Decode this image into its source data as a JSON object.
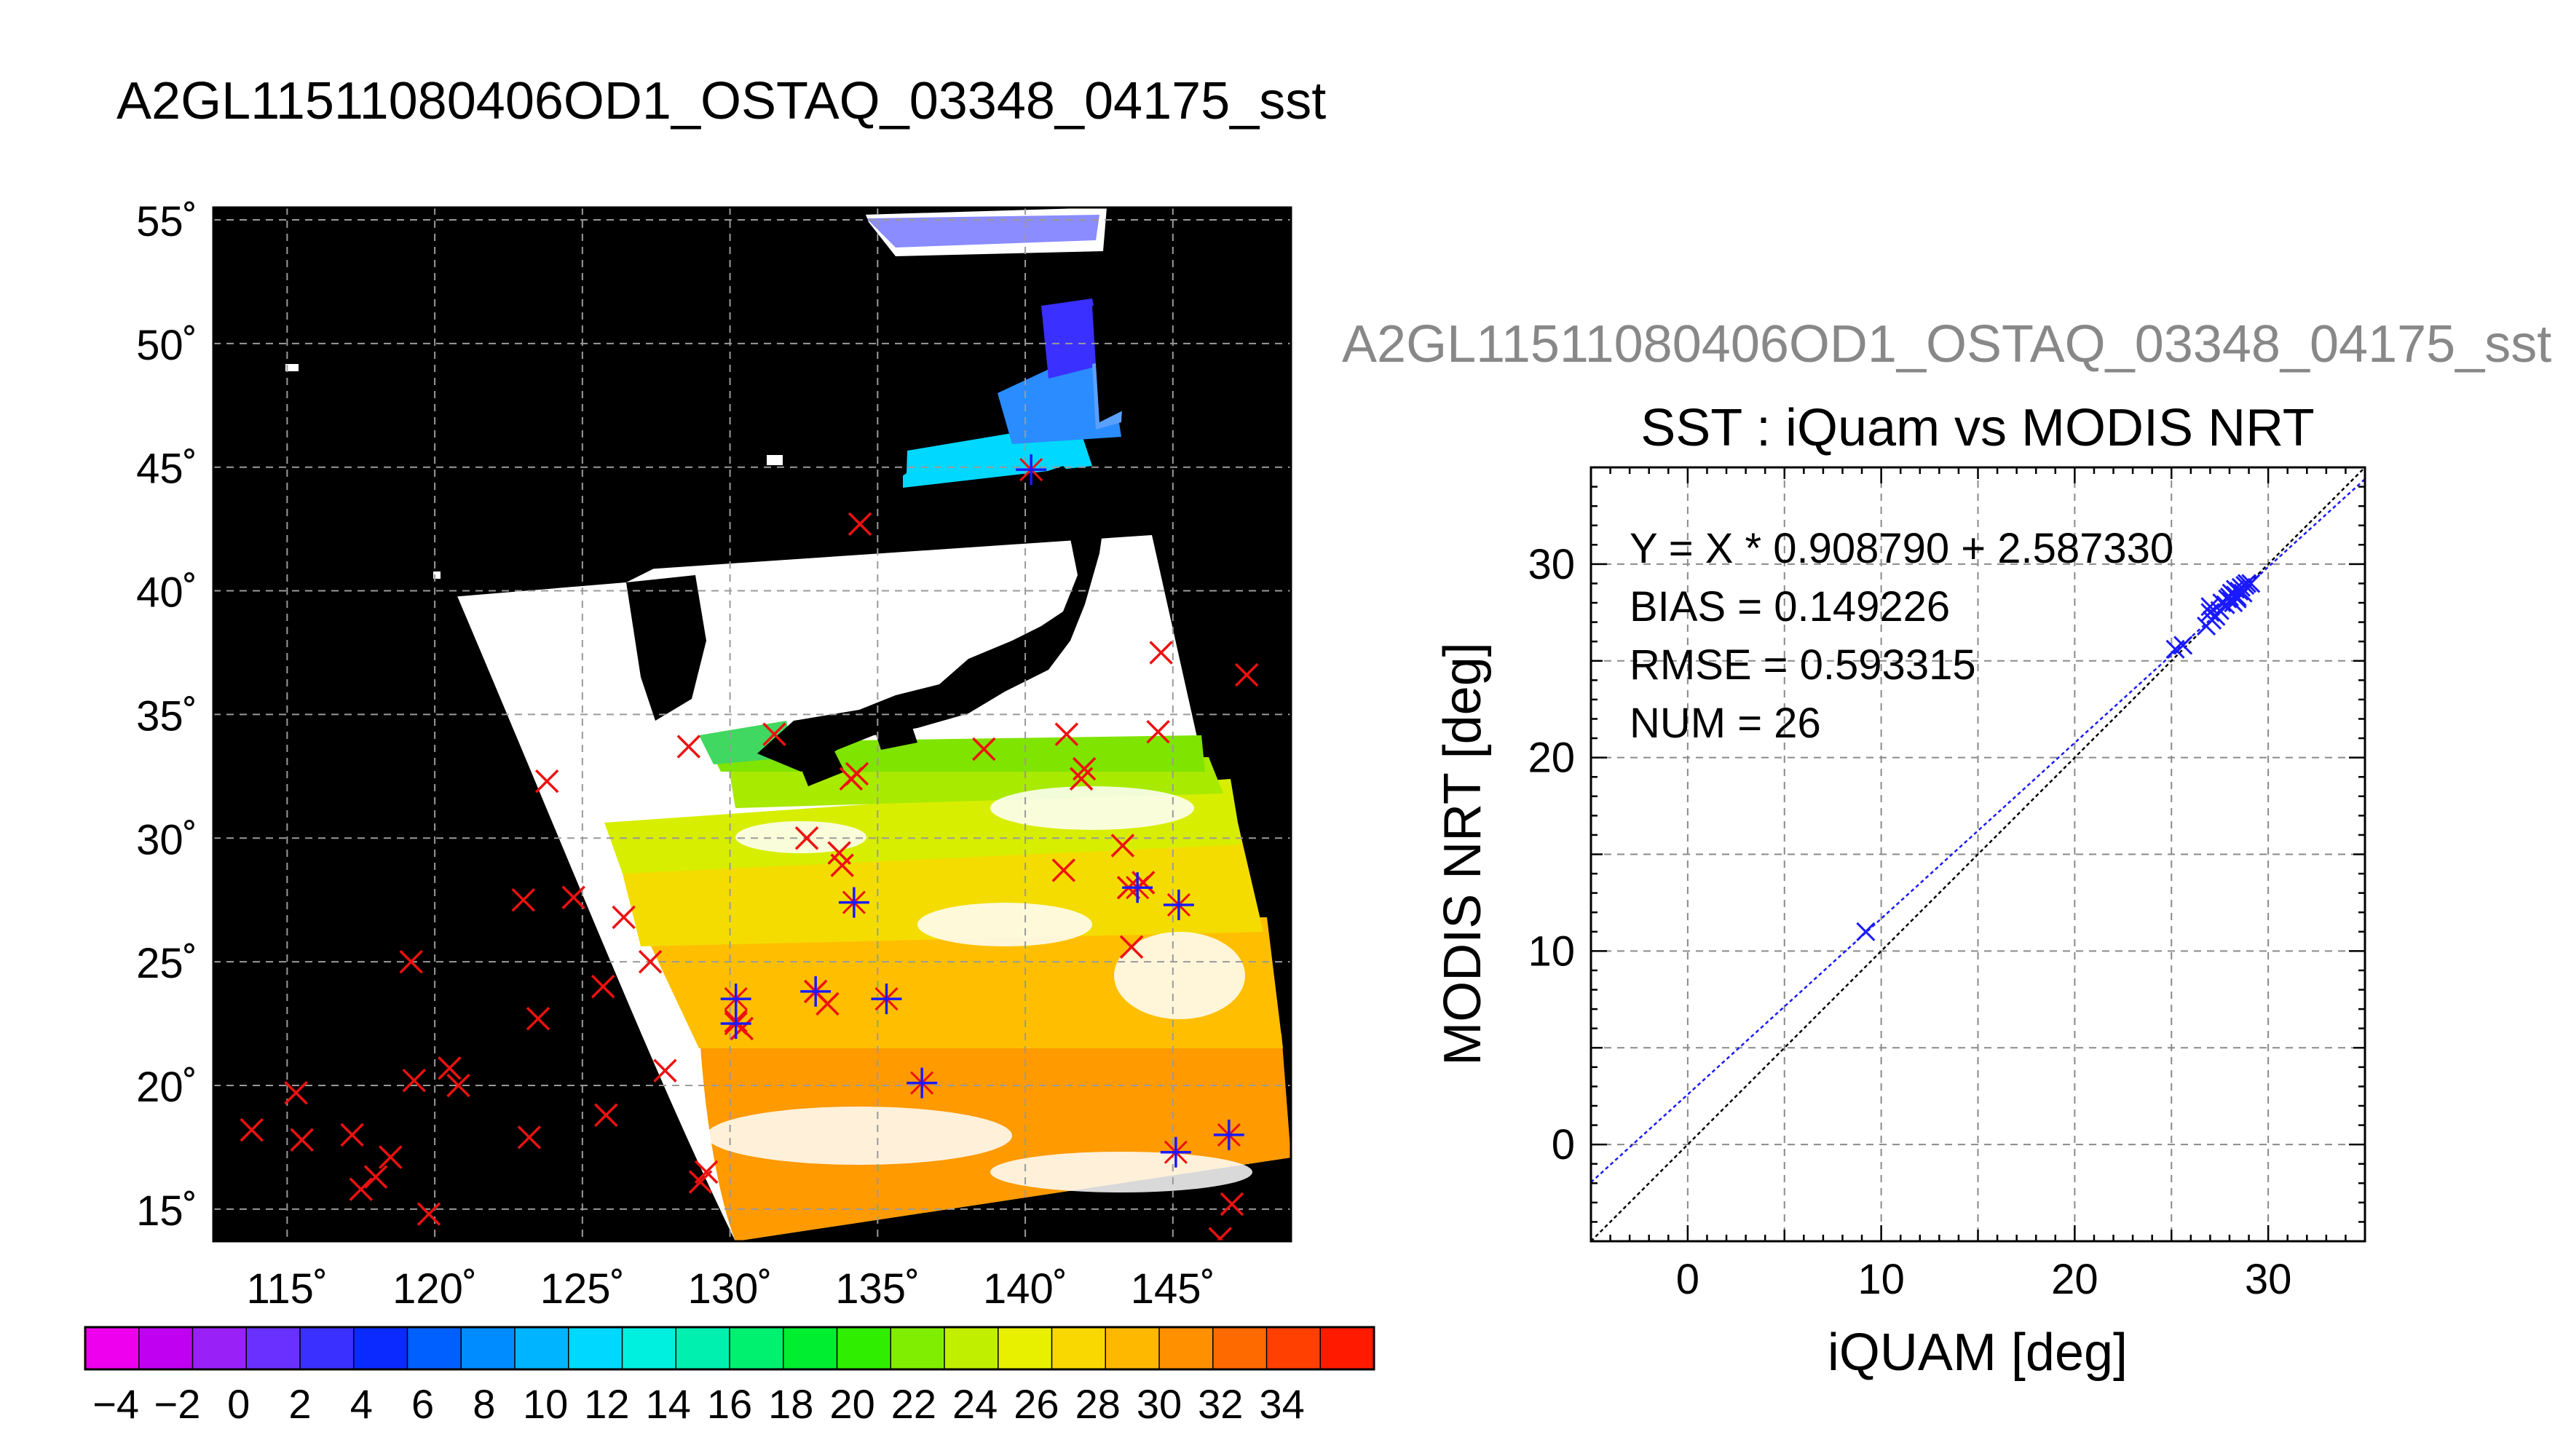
{
  "title": "A2GL11511080406OD1_OSTAQ_03348_04175_sst",
  "subtitle_grey": "A2GL11511080406OD1_OSTAQ_03348_04175_sst",
  "map": {
    "lon_labels": [
      "115˚",
      "120˚",
      "125˚",
      "130˚",
      "135˚",
      "140˚",
      "145˚"
    ],
    "lat_labels": [
      "55˚",
      "50˚",
      "45˚",
      "40˚",
      "35˚",
      "30˚",
      "25˚",
      "20˚",
      "15˚"
    ],
    "lon_range": [
      112.5,
      149
    ],
    "lat_range": [
      13.7,
      55.5
    ]
  },
  "colorbar": {
    "labels": [
      "−4",
      "−2",
      "0",
      "2",
      "4",
      "6",
      "8",
      "10",
      "12",
      "14",
      "16",
      "18",
      "20",
      "22",
      "24",
      "26",
      "28",
      "30",
      "32",
      "34"
    ],
    "colors": [
      "#ee00ee",
      "#c000f0",
      "#9a20f8",
      "#6a30ff",
      "#3a30ff",
      "#0a2aff",
      "#0060ff",
      "#008cff",
      "#00b4ff",
      "#00d8ff",
      "#00f0e0",
      "#00f0b0",
      "#00f070",
      "#00ee30",
      "#30ee00",
      "#80ee00",
      "#c0f000",
      "#e8f000",
      "#f8d800",
      "#ffb800",
      "#ff9000",
      "#ff6a00",
      "#ff4000",
      "#ff1a00"
    ]
  },
  "red_crosses": [
    [
      113.8,
      18.2
    ],
    [
      115.3,
      19.7
    ],
    [
      115.5,
      17.8
    ],
    [
      117.2,
      18.0
    ],
    [
      117.5,
      15.8
    ],
    [
      118.0,
      16.3
    ],
    [
      118.5,
      17.1
    ],
    [
      119.3,
      20.2
    ],
    [
      119.2,
      25.0
    ],
    [
      119.8,
      14.8
    ],
    [
      120.5,
      20.7
    ],
    [
      120.8,
      20.0
    ],
    [
      123.2,
      17.9
    ],
    [
      123.5,
      22.7
    ],
    [
      123.8,
      32.3
    ],
    [
      123.0,
      27.5
    ],
    [
      124.7,
      27.6
    ],
    [
      125.7,
      24.0
    ],
    [
      125.8,
      18.8
    ],
    [
      126.4,
      26.8
    ],
    [
      127.3,
      25.0
    ],
    [
      127.8,
      20.6
    ],
    [
      128.6,
      33.7
    ],
    [
      129.2,
      16.5
    ],
    [
      129.0,
      16.1
    ],
    [
      130.2,
      22.6
    ],
    [
      130.4,
      22.3
    ],
    [
      131.5,
      34.2
    ],
    [
      132.6,
      30.0
    ],
    [
      132.9,
      23.8
    ],
    [
      133.3,
      23.3
    ],
    [
      133.8,
      28.9
    ],
    [
      133.7,
      29.4
    ],
    [
      134.3,
      32.6
    ],
    [
      134.1,
      32.4
    ],
    [
      134.4,
      42.7
    ],
    [
      138.6,
      33.6
    ],
    [
      141.3,
      28.7
    ],
    [
      141.4,
      34.2
    ],
    [
      141.9,
      32.4
    ],
    [
      142.0,
      32.8
    ],
    [
      143.3,
      29.7
    ],
    [
      143.6,
      25.6
    ],
    [
      143.5,
      28.0
    ],
    [
      144.0,
      28.2
    ],
    [
      144.5,
      34.3
    ],
    [
      144.6,
      37.5
    ],
    [
      147.5,
      36.6
    ],
    [
      147.0,
      15.2
    ],
    [
      146.6,
      13.8
    ]
  ],
  "blue_stars": [
    [
      130.2,
      23.5
    ],
    [
      130.2,
      22.5
    ],
    [
      132.9,
      23.8
    ],
    [
      134.2,
      27.4
    ],
    [
      135.3,
      23.5
    ],
    [
      136.5,
      20.1
    ],
    [
      140.2,
      44.9
    ],
    [
      143.8,
      28.0
    ],
    [
      145.2,
      27.3
    ],
    [
      145.1,
      17.3
    ],
    [
      146.9,
      18.0
    ]
  ],
  "chart_data": {
    "type": "scatter",
    "title": "SST : iQuam vs MODIS NRT",
    "xlabel": "iQUAM [deg]",
    "ylabel": "MODIS NRT [deg]",
    "xlim": [
      -5,
      35
    ],
    "ylim": [
      -5,
      35
    ],
    "x_ticks": [
      "0",
      "10",
      "20",
      "30"
    ],
    "y_ticks": [
      "0",
      "10",
      "20",
      "30"
    ],
    "grid": true,
    "stats": [
      "Y = X * 0.908790 + 2.587330",
      "BIAS = 0.149226",
      "RMSE = 0.593315",
      "NUM = 26"
    ],
    "fit": {
      "slope": 0.90879,
      "intercept": 2.58733
    },
    "points": {
      "x": [
        9.2,
        25.2,
        25.6,
        26.8,
        27.0,
        27.1,
        27.0,
        27.3,
        27.5,
        27.6,
        27.8,
        27.9,
        28.0,
        28.1,
        28.2,
        28.3,
        28.3,
        28.4,
        28.5,
        28.6,
        28.7,
        28.8,
        28.9,
        29.1,
        28.1,
        28.4
      ],
      "y": [
        11.0,
        25.6,
        25.8,
        26.8,
        27.5,
        27.1,
        27.8,
        27.3,
        27.6,
        28.0,
        27.9,
        28.2,
        28.3,
        28.5,
        28.0,
        28.4,
        28.7,
        28.2,
        28.6,
        28.8,
        28.5,
        28.9,
        29.0,
        29.0,
        28.1,
        28.3
      ]
    }
  }
}
